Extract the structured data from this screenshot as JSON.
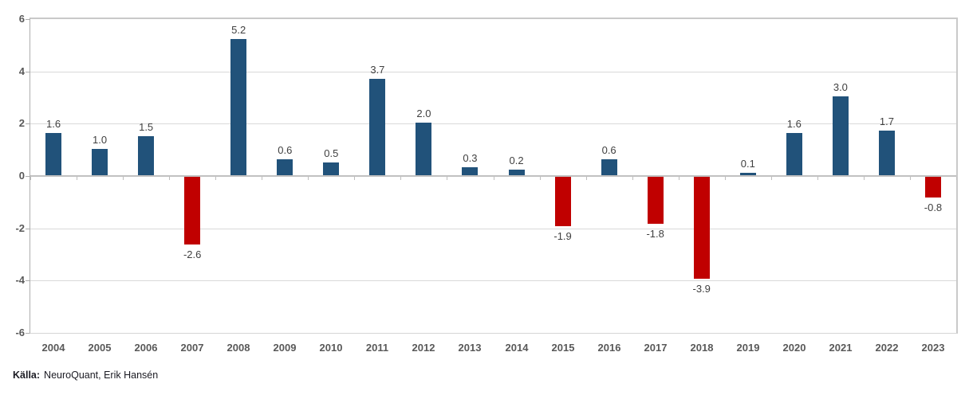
{
  "chart_data": {
    "type": "bar",
    "title": "",
    "xlabel": "",
    "ylabel": "",
    "categories": [
      "2004",
      "2005",
      "2006",
      "2007",
      "2008",
      "2009",
      "2010",
      "2011",
      "2012",
      "2013",
      "2014",
      "2015",
      "2016",
      "2017",
      "2018",
      "2019",
      "2020",
      "2021",
      "2022",
      "2023"
    ],
    "values": [
      1.6,
      1.0,
      1.5,
      -2.6,
      5.2,
      0.6,
      0.5,
      3.7,
      2.0,
      0.3,
      0.2,
      -1.9,
      0.6,
      -1.8,
      -3.9,
      0.1,
      1.6,
      3.0,
      1.7,
      -0.8
    ],
    "bar_labels": [
      "1.6",
      "1.0",
      "1.5",
      "-2.6",
      "5.2",
      "0.6",
      "0.5",
      "3.7",
      "2.0",
      "0.3",
      "0.2",
      "-1.9",
      "0.6",
      "-1.8",
      "-3.9",
      "0.1",
      "1.6",
      "3.0",
      "1.7",
      "-0.8"
    ],
    "yticks": [
      6,
      4,
      2,
      0,
      -2,
      -4,
      -6
    ],
    "ytick_labels": [
      "6",
      "4",
      "2",
      "0",
      "-2",
      "-4",
      "-6"
    ],
    "ylim": [
      -6,
      6
    ],
    "grid": "horizontal",
    "legend": "none",
    "colors": {
      "positive_bar": "#21527a",
      "negative_bar": "#c00000",
      "gridline": "#d9d9d9",
      "axis_line": "#adadad",
      "zero_line": "#c1c1c1",
      "tick_label": "#595959",
      "data_label": "#404040",
      "background": "#ffffff",
      "source_text": "#1a1a22"
    }
  },
  "footer": {
    "source_label": "Källa:",
    "source_text": "NeuroQuant, Erik Hansén"
  }
}
